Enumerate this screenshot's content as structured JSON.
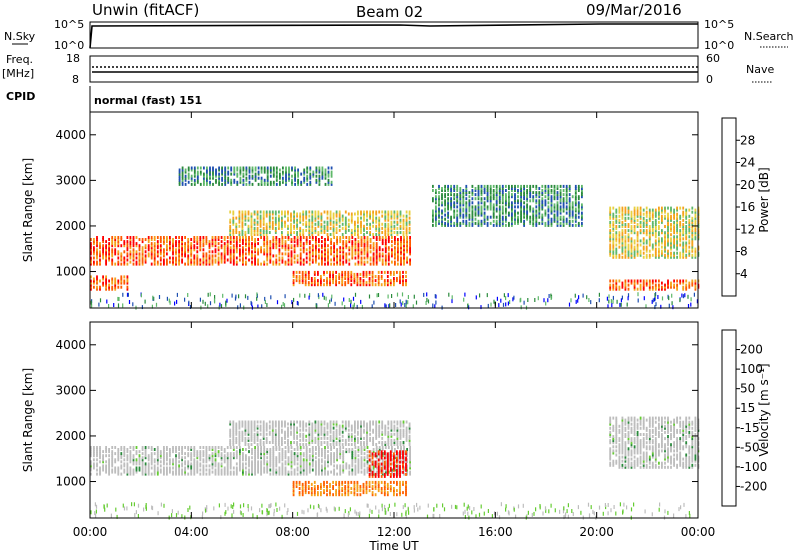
{
  "header": {
    "site": "Unwin (fitACF)",
    "beam": "Beam 02",
    "date": "09/Mar/2016"
  },
  "status_panels": {
    "nsky_label": "N.Sky",
    "nsky_ticks": [
      "10^5",
      "10^0"
    ],
    "nsearch_label": "N.Search",
    "freq_label": "Freq.",
    "freq_unit": "[MHz]",
    "freq_ticks": [
      "18",
      "8"
    ],
    "nave_label": "Nave",
    "nave_ticks": [
      "60",
      "0"
    ],
    "cpid_label": "CPID",
    "cpid_value": "normal (fast) 151"
  },
  "chart_data": [
    {
      "type": "heatmap",
      "ylabel": "Slant Range [km]",
      "xlabel": "Time UT",
      "ylim": [
        200,
        4500
      ],
      "yticks": [
        "4000",
        "3000",
        "2000",
        "1000"
      ],
      "xticks": [
        "00:00",
        "04:00",
        "08:00",
        "12:00",
        "16:00",
        "20:00",
        "00:00"
      ],
      "colorbar": {
        "label": "Power [dB]",
        "ticks": [
          "28",
          "24",
          "20",
          "16",
          "12",
          "8",
          "4"
        ],
        "colors": [
          "#0000ff",
          "#1e4fb0",
          "#2a8a3c",
          "#5fb86a",
          "#e8d040",
          "#f5a21b",
          "#ff5a00",
          "#ff0000"
        ]
      },
      "bands": [
        {
          "t0": 0.0,
          "t1": 12.6,
          "r0": 1150,
          "r1": 1750,
          "level": "high"
        },
        {
          "t0": 5.5,
          "t1": 12.6,
          "r0": 1800,
          "r1": 2300,
          "level": "mid"
        },
        {
          "t0": 3.5,
          "t1": 9.5,
          "r0": 2900,
          "r1": 3300,
          "level": "low"
        },
        {
          "t0": 8.0,
          "t1": 12.5,
          "r0": 700,
          "r1": 1000,
          "level": "high"
        },
        {
          "t0": 0.0,
          "t1": 1.5,
          "r0": 600,
          "r1": 900,
          "level": "high"
        },
        {
          "t0": 13.5,
          "t1": 19.5,
          "r0": 2000,
          "r1": 2900,
          "level": "low"
        },
        {
          "t0": 20.5,
          "t1": 24.0,
          "r0": 1300,
          "r1": 2400,
          "level": "mid"
        },
        {
          "t0": 20.5,
          "t1": 24.0,
          "r0": 600,
          "r1": 800,
          "level": "high"
        }
      ]
    },
    {
      "type": "heatmap",
      "ylabel": "Slant Range [km]",
      "xlabel": "Time UT",
      "ylim": [
        200,
        4500
      ],
      "yticks": [
        "4000",
        "3000",
        "2000",
        "1000"
      ],
      "xticks": [
        "00:00",
        "04:00",
        "08:00",
        "12:00",
        "16:00",
        "20:00",
        "00:00"
      ],
      "colorbar": {
        "label": "Velocity [m s⁻¹]",
        "ticks": [
          "200",
          "100",
          "50",
          "15",
          "-15",
          "-50",
          "-100",
          "-200"
        ],
        "colors": [
          "#ff0000",
          "#ff6000",
          "#f5a21b",
          "#e8c78a",
          "#bdbdbd",
          "#66cc33",
          "#2a8a3c",
          "#1e4fb0",
          "#0000ff"
        ]
      },
      "bands": [
        {
          "t0": 0.0,
          "t1": 12.6,
          "r0": 1150,
          "r1": 1750,
          "level": "zero"
        },
        {
          "t0": 5.5,
          "t1": 12.6,
          "r0": 1800,
          "r1": 2300,
          "level": "zero"
        },
        {
          "t0": 11.0,
          "t1": 12.5,
          "r0": 1100,
          "r1": 1650,
          "level": "neg"
        },
        {
          "t0": 8.0,
          "t1": 12.5,
          "r0": 700,
          "r1": 1000,
          "level": "negmid"
        },
        {
          "t0": 20.5,
          "t1": 24.0,
          "r0": 1300,
          "r1": 2400,
          "level": "zero"
        }
      ]
    }
  ]
}
